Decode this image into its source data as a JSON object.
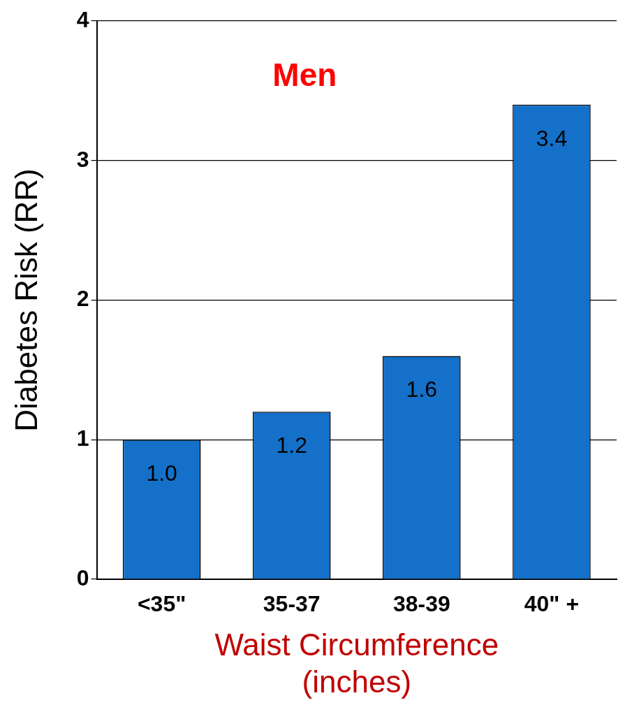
{
  "chart_data": {
    "type": "bar",
    "title": "Men",
    "xlabel": "Waist Circumference\n(inches)",
    "ylabel": "Diabetes Risk (RR)",
    "categories": [
      "<35\"",
      "35-37",
      "38-39",
      "40\" +"
    ],
    "values": [
      1.0,
      1.2,
      1.6,
      3.4
    ],
    "value_labels": [
      "1.0",
      "1.2",
      "1.6",
      "3.4"
    ],
    "color": "#1470c8",
    "ylim": [
      0,
      4
    ],
    "yticks": [
      0,
      1,
      2,
      3,
      4
    ],
    "grid": "y"
  }
}
